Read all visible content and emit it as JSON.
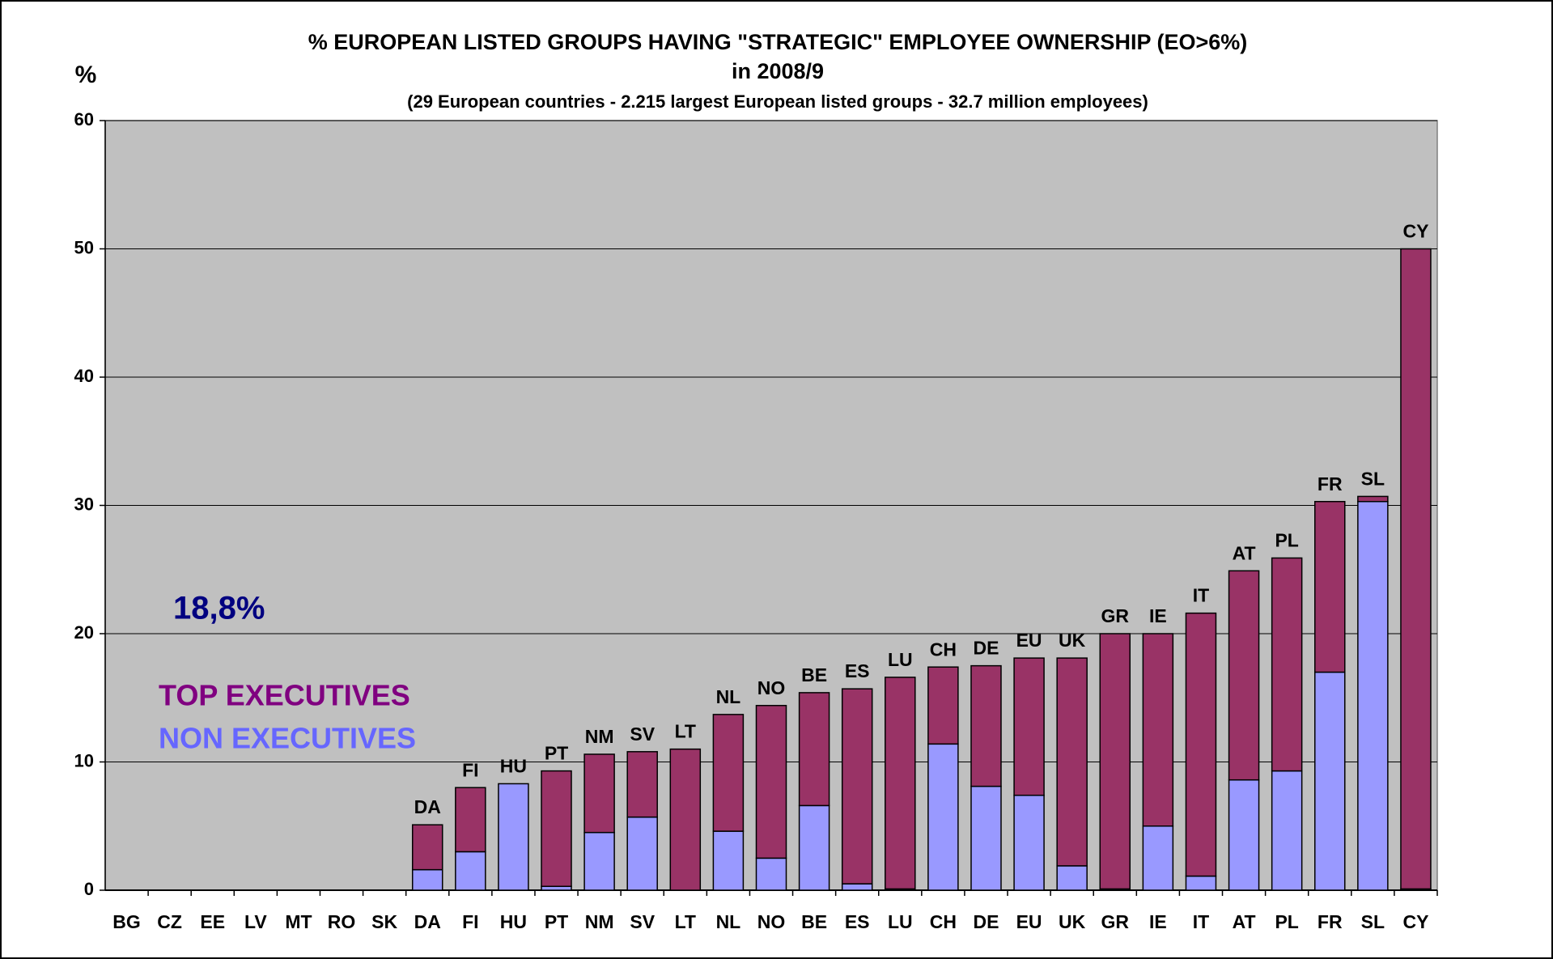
{
  "chart_data": {
    "type": "stacked_bar",
    "title": "% EUROPEAN LISTED GROUPS HAVING \"STRATEGIC\" EMPLOYEE OWNERSHIP (EO>6%)",
    "title_line2": "in 2008/9",
    "subtitle": "(29 European countries - 2.215 largest European listed groups - 32.7 million employees)",
    "y_label": "%",
    "annotation": "18,8%",
    "categories": [
      "BG",
      "CZ",
      "EE",
      "LV",
      "MT",
      "RO",
      "SK",
      "DA",
      "FI",
      "HU",
      "PT",
      "NM",
      "SV",
      "LT",
      "NL",
      "NO",
      "BE",
      "ES",
      "LU",
      "CH",
      "DE",
      "EU",
      "UK",
      "GR",
      "IE",
      "IT",
      "AT",
      "PL",
      "FR",
      "SL",
      "CY"
    ],
    "series": [
      {
        "name": "NON EXECUTIVES",
        "color": "#9999ff",
        "values": [
          0,
          0,
          0,
          0,
          0,
          0,
          0,
          1.6,
          3.0,
          8.3,
          0.3,
          4.5,
          5.7,
          0,
          4.6,
          2.5,
          6.6,
          0.5,
          0.1,
          11.4,
          8.1,
          7.4,
          1.9,
          0.1,
          5.0,
          1.1,
          8.6,
          9.3,
          17.0,
          30.3,
          0.1
        ]
      },
      {
        "name": "TOP EXECUTIVES",
        "color": "#993366",
        "values": [
          0,
          0,
          0,
          0,
          0,
          0,
          0,
          3.5,
          5.0,
          0,
          9.0,
          6.1,
          5.1,
          11.0,
          9.1,
          11.9,
          8.8,
          15.2,
          16.5,
          6.0,
          9.4,
          10.7,
          16.2,
          19.9,
          15.0,
          20.5,
          16.3,
          16.6,
          13.3,
          0.4,
          49.9
        ]
      }
    ],
    "ylim": [
      0,
      60
    ],
    "yticks": [
      0,
      10,
      20,
      30,
      40,
      50,
      60
    ],
    "grid": true,
    "plot_background": "#c0c0c0"
  }
}
